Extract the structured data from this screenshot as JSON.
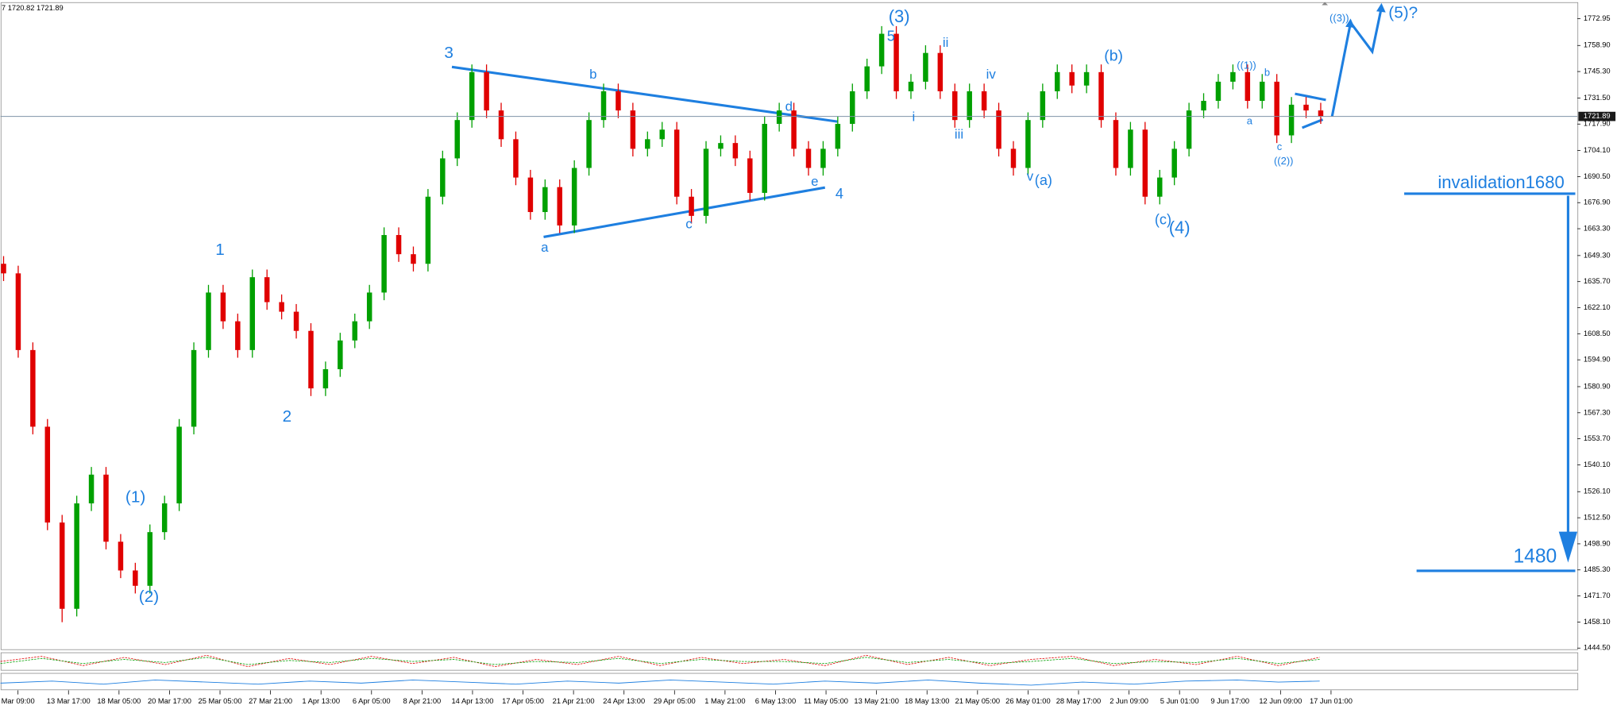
{
  "chart_data": {
    "type": "candlestick",
    "header": "7 1720.82 1721.89",
    "up_color": "#00a000",
    "down_color": "#e00000",
    "categories": [
      "Mar 09:00",
      "13 Mar 17:00",
      "18 Mar 05:00",
      "20 Mar 17:00",
      "25 Mar 05:00",
      "27 Mar 21:00",
      "1 Apr 13:00",
      "6 Apr 05:00",
      "8 Apr 21:00",
      "14 Apr 13:00",
      "17 Apr 05:00",
      "21 Apr 21:00",
      "24 Apr 13:00",
      "29 Apr 05:00",
      "1 May 21:00",
      "6 May 13:00",
      "11 May 05:00",
      "13 May 21:00",
      "18 May 13:00",
      "21 May 05:00",
      "26 May 01:00",
      "28 May 17:00",
      "2 Jun 09:00",
      "5 Jun 01:00",
      "9 Jun 17:00",
      "12 Jun 09:00",
      "17 Jun 01:00"
    ],
    "open": [
      1645,
      1640,
      1600,
      1560,
      1510,
      1465,
      1520,
      1535,
      1500,
      1485,
      1477,
      1505,
      1520,
      1560,
      1600,
      1630,
      1615,
      1600,
      1638,
      1625,
      1620,
      1610,
      1580,
      1590,
      1605,
      1615,
      1630,
      1660,
      1650,
      1645,
      1680,
      1700,
      1720,
      1745,
      1725,
      1710,
      1690,
      1672,
      1685,
      1665,
      1695,
      1720,
      1735,
      1725,
      1705,
      1710,
      1715,
      1680,
      1670,
      1705,
      1708,
      1700,
      1682,
      1718,
      1725,
      1705,
      1695,
      1705,
      1718,
      1735,
      1748,
      1765,
      1735,
      1740,
      1755,
      1735,
      1720,
      1735,
      1725,
      1705,
      1695,
      1720,
      1735,
      1745,
      1738,
      1745,
      1720,
      1695,
      1715,
      1680,
      1690,
      1705,
      1725,
      1730,
      1740,
      1745,
      1730,
      1740,
      1712,
      1728,
      1725
    ],
    "high": [
      1649,
      1644,
      1604,
      1564,
      1514,
      1524,
      1539,
      1539,
      1504,
      1489,
      1509,
      1524,
      1564,
      1604,
      1634,
      1634,
      1619,
      1642,
      1642,
      1629,
      1624,
      1614,
      1594,
      1609,
      1619,
      1634,
      1664,
      1664,
      1654,
      1684,
      1704,
      1724,
      1749,
      1749,
      1729,
      1714,
      1694,
      1689,
      1689,
      1699,
      1724,
      1739,
      1739,
      1729,
      1714,
      1719,
      1719,
      1684,
      1709,
      1712,
      1712,
      1704,
      1722,
      1729,
      1729,
      1709,
      1709,
      1722,
      1739,
      1752,
      1769,
      1769,
      1744,
      1759,
      1759,
      1739,
      1739,
      1739,
      1729,
      1709,
      1724,
      1739,
      1749,
      1749,
      1749,
      1749,
      1724,
      1719,
      1719,
      1694,
      1709,
      1729,
      1734,
      1744,
      1749,
      1749,
      1744,
      1744,
      1732,
      1732,
      1729
    ],
    "low": [
      1636,
      1596,
      1556,
      1506,
      1458,
      1461,
      1516,
      1496,
      1481,
      1473,
      1473,
      1501,
      1516,
      1556,
      1596,
      1611,
      1596,
      1596,
      1621,
      1616,
      1606,
      1576,
      1576,
      1586,
      1601,
      1611,
      1626,
      1646,
      1641,
      1641,
      1676,
      1696,
      1716,
      1721,
      1706,
      1686,
      1668,
      1668,
      1661,
      1661,
      1691,
      1716,
      1721,
      1701,
      1701,
      1706,
      1676,
      1666,
      1666,
      1701,
      1696,
      1678,
      1678,
      1714,
      1701,
      1691,
      1691,
      1701,
      1714,
      1731,
      1744,
      1731,
      1731,
      1736,
      1731,
      1716,
      1716,
      1721,
      1701,
      1691,
      1691,
      1716,
      1731,
      1734,
      1734,
      1716,
      1691,
      1691,
      1676,
      1676,
      1686,
      1701,
      1721,
      1726,
      1736,
      1726,
      1726,
      1708,
      1708,
      1721,
      1718
    ],
    "close": [
      1640,
      1600,
      1560,
      1510,
      1465,
      1520,
      1535,
      1500,
      1485,
      1477,
      1505,
      1520,
      1560,
      1600,
      1630,
      1615,
      1600,
      1638,
      1625,
      1620,
      1610,
      1580,
      1590,
      1605,
      1615,
      1630,
      1660,
      1650,
      1645,
      1680,
      1700,
      1720,
      1745,
      1725,
      1710,
      1690,
      1672,
      1685,
      1665,
      1695,
      1720,
      1735,
      1725,
      1705,
      1710,
      1715,
      1680,
      1670,
      1705,
      1708,
      1700,
      1682,
      1718,
      1725,
      1705,
      1695,
      1705,
      1718,
      1735,
      1748,
      1765,
      1735,
      1740,
      1755,
      1735,
      1720,
      1735,
      1725,
      1705,
      1695,
      1720,
      1735,
      1745,
      1738,
      1745,
      1720,
      1695,
      1715,
      1680,
      1690,
      1705,
      1725,
      1730,
      1740,
      1745,
      1730,
      1740,
      1712,
      1728,
      1725,
      1722
    ],
    "last_price": 1721.89,
    "ylim": [
      1444.5,
      1772.95
    ],
    "yticks": [
      1772.95,
      {
        "value": 1758.9,
        "label": "1758.90"
      },
      {
        "value": 1745.3,
        "label": "1745.30"
      },
      {
        "value": 1731.5,
        "label": "1731.50"
      },
      {
        "value": 1717.9,
        "label": "1717.90"
      },
      {
        "value": 1704.1,
        "label": "1704.10"
      },
      {
        "value": 1690.5,
        "label": "1690.50"
      },
      {
        "value": 1676.9,
        "label": "1676.90"
      },
      {
        "value": 1663.3,
        "label": "1663.30"
      },
      {
        "value": 1649.3,
        "label": "1649.30"
      },
      {
        "value": 1635.7,
        "label": "1635.70"
      },
      {
        "value": 1622.1,
        "label": "1622.10"
      },
      {
        "value": 1608.5,
        "label": "1608.50"
      },
      {
        "value": 1594.9,
        "label": "1594.90"
      },
      {
        "value": 1580.9,
        "label": "1580.90"
      },
      {
        "value": 1567.3,
        "label": "1567.30"
      },
      {
        "value": 1553.7,
        "label": "1553.70"
      },
      {
        "value": 1540.1,
        "label": "1540.10"
      },
      {
        "value": 1526.1,
        "label": "1526.10"
      },
      {
        "value": 1512.5,
        "label": "1512.50"
      },
      {
        "value": 1498.9,
        "label": "1498.90"
      },
      {
        "value": 1485.3,
        "label": "1485.30"
      },
      {
        "value": 1471.7,
        "label": "1471.70"
      },
      {
        "value": 1458.1,
        "label": "1458.10"
      },
      {
        "value": 1444.5,
        "label": "1444.50"
      }
    ],
    "annotations": [
      "3",
      "b",
      "d",
      "a",
      "c",
      "e",
      "4",
      "(3)",
      "5",
      "ii",
      "i",
      "iv",
      "iii",
      "v",
      "(a)",
      "(b)",
      "(c)",
      "(4)",
      "((1))",
      "a",
      "b",
      "c",
      "((2))",
      "((3))",
      "(5)?",
      "1",
      "2",
      "(1)",
      "(2)",
      "invalidation1680",
      "1480"
    ]
  }
}
